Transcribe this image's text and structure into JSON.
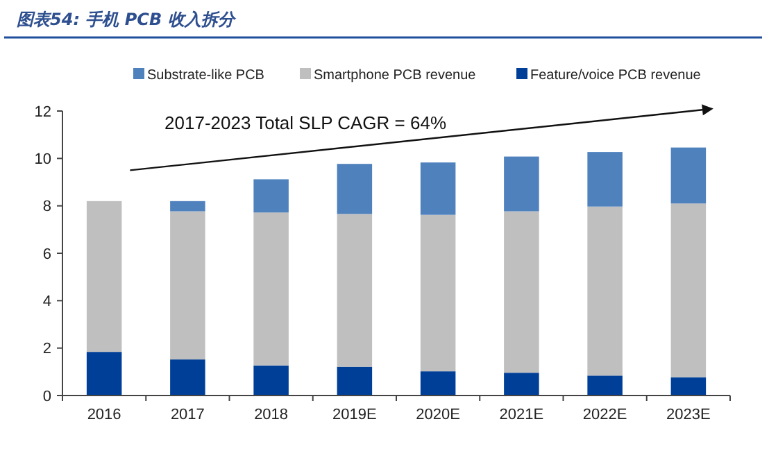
{
  "chart_data": {
    "type": "bar",
    "stacked": true,
    "title": "图表54: 手机 PCB 收入拆分",
    "categories": [
      "2016",
      "2017",
      "2018",
      "2019E",
      "2020E",
      "2021E",
      "2022E",
      "2023E"
    ],
    "series": [
      {
        "name": "Feature/voice PCB revenue",
        "color": "#003f98",
        "values": [
          1.84,
          1.52,
          1.27,
          1.21,
          1.02,
          0.96,
          0.84,
          0.77
        ]
      },
      {
        "name": "Smartphone PCB revenue",
        "color": "#bfbfbf",
        "values": [
          6.36,
          6.25,
          6.45,
          6.45,
          6.6,
          6.81,
          7.13,
          7.33
        ]
      },
      {
        "name": "Substrate-like PCB",
        "color": "#4f81bd",
        "values": [
          0,
          0.43,
          1.4,
          2.11,
          2.21,
          2.31,
          2.3,
          2.36
        ]
      }
    ],
    "ylim": [
      0,
      12
    ],
    "yticks": [
      0,
      2,
      4,
      6,
      8,
      10,
      12
    ],
    "grid": false,
    "legend": "top",
    "annotations": [
      "2017-2023 Total SLP CAGR = 64%"
    ]
  }
}
